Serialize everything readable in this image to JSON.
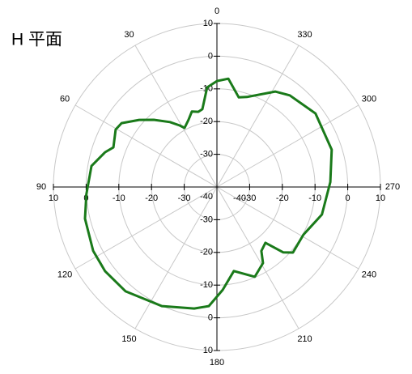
{
  "chart_data": {
    "type": "polar",
    "title": "H 平面",
    "theta": [
      354,
      0,
      5.6,
      10.6,
      13.9,
      18.4,
      22.9,
      28.7,
      31.2,
      35.9,
      43.2,
      49.2,
      56.2,
      60.4,
      69.1,
      72.7,
      80.5,
      93.2,
      103.5,
      117.3,
      127,
      138.8,
      155.2,
      169.4,
      176.1,
      183.2,
      191.4,
      202.9,
      211.2,
      214.8,
      221,
      225.4,
      229.2,
      241.1,
      255.3,
      272.5,
      288,
      306.7,
      321.5,
      328.6,
      341.6,
      346.3
    ],
    "r": [
      -6.7,
      -7.6,
      -9.4,
      -15.8,
      -16.3,
      -15.7,
      -17.7,
      -19.4,
      -18.0,
      -15.5,
      -11.8,
      -8.6,
      -4.9,
      -4.4,
      -6.1,
      -4.2,
      -1.1,
      0,
      1.5,
      2.6,
      2.8,
      2.4,
      0.1,
      -2.2,
      -3.5,
      -8.5,
      -13.8,
      -10.2,
      -12.8,
      -16.2,
      -17.4,
      -11.5,
      -9.3,
      -9.8,
      -6.8,
      -5.3,
      -3.1,
      -2.4,
      -4.2,
      -5.8,
      -11,
      -11.8
    ],
    "color": "#1a7a1a",
    "rlim": [
      -40,
      10
    ],
    "rticks": [
      -40,
      -30,
      -20,
      -10,
      0,
      10
    ],
    "thetaticks": [
      0,
      30,
      60,
      90,
      120,
      150,
      180,
      210,
      240,
      270,
      300,
      330
    ],
    "grid": true
  }
}
